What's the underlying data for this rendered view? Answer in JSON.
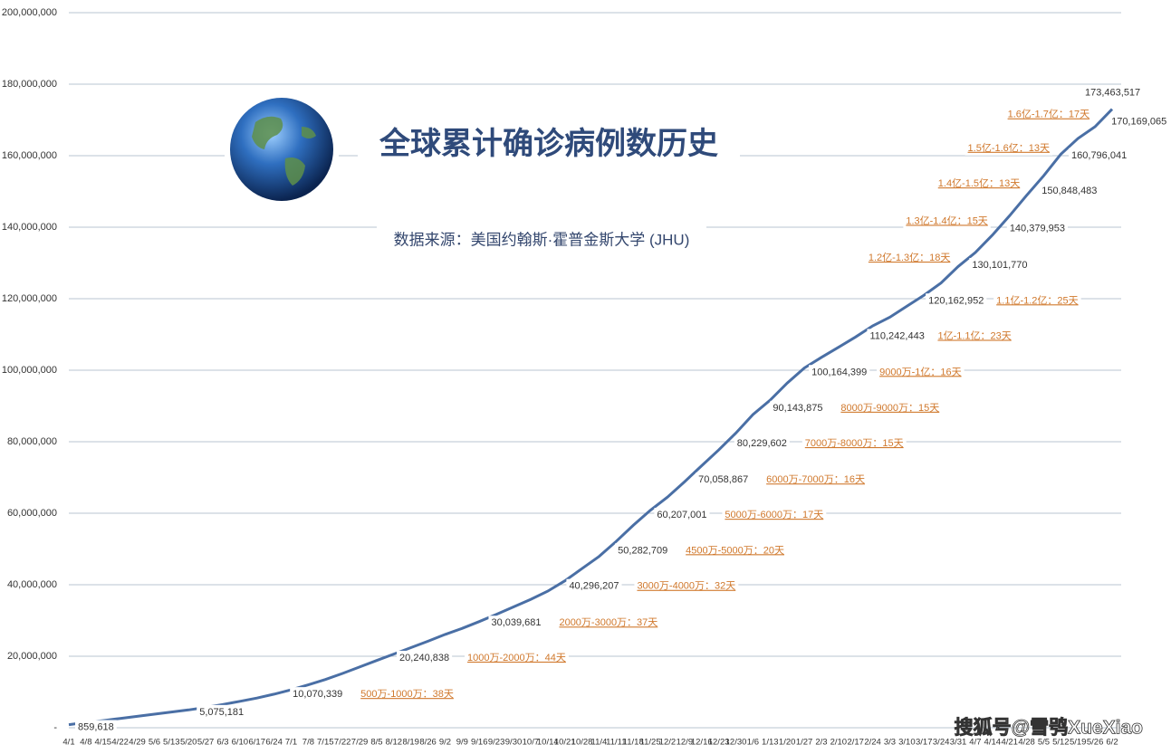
{
  "chart_data": {
    "type": "line",
    "title": "全球累计确诊病例数历史",
    "subtitle": "数据来源：美国约翰斯·霍普金斯大学 (JHU)",
    "categories": [
      "4/1",
      "4/8",
      "4/15",
      "4/22",
      "4/29",
      "5/6",
      "5/13",
      "5/20",
      "5/27",
      "6/3",
      "6/10",
      "6/17",
      "6/24",
      "7/1",
      "7/8",
      "7/15",
      "7/22",
      "7/29",
      "8/5",
      "8/12",
      "8/19",
      "8/26",
      "9/2",
      "9/9",
      "9/16",
      "9/23",
      "9/30",
      "10/7",
      "10/14",
      "10/21",
      "10/28",
      "11/4",
      "11/11",
      "11/18",
      "11/25",
      "12/2",
      "12/9",
      "12/16",
      "12/23",
      "12/30",
      "1/6",
      "1/13",
      "1/20",
      "1/27",
      "2/3",
      "2/10",
      "2/17",
      "2/24",
      "3/3",
      "3/10",
      "3/17",
      "3/24",
      "3/31",
      "4/7",
      "4/14",
      "4/21",
      "4/28",
      "5/5",
      "5/12",
      "5/19",
      "5/26",
      "6/2"
    ],
    "values": [
      859618,
      1500000,
      2000000,
      2600000,
      3200000,
      3800000,
      4400000,
      5000000,
      5700000,
      6500000,
      7400000,
      8300000,
      9400000,
      10600000,
      12000000,
      13500000,
      15200000,
      17000000,
      18800000,
      20600000,
      22400000,
      24200000,
      26100000,
      27800000,
      29700000,
      31700000,
      33800000,
      35900000,
      38200000,
      41100000,
      44500000,
      47900000,
      52100000,
      56600000,
      60800000,
      64500000,
      68800000,
      73300000,
      77700000,
      82400000,
      87600000,
      91600000,
      96400000,
      100600000,
      103600000,
      106400000,
      109300000,
      112400000,
      114800000,
      117900000,
      121000000,
      124400000,
      129000000,
      132900000,
      137800000,
      143200000,
      148900000,
      154400000,
      160400000,
      164800000,
      168100000,
      173000000
    ],
    "color": "#4a6fa5",
    "ylim": [
      0,
      200000000
    ],
    "yticks": [
      {
        "value": 0,
        "label": "-"
      },
      {
        "value": 20000000,
        "label": "20,000,000"
      },
      {
        "value": 40000000,
        "label": "40,000,000"
      },
      {
        "value": 60000000,
        "label": "60,000,000"
      },
      {
        "value": 80000000,
        "label": "80,000,000"
      },
      {
        "value": 100000000,
        "label": "100,000,000"
      },
      {
        "value": 120000000,
        "label": "120,000,000"
      },
      {
        "value": 140000000,
        "label": "140,000,000"
      },
      {
        "value": 160000000,
        "label": "160,000,000"
      },
      {
        "value": 180000000,
        "label": "180,000,000"
      },
      {
        "value": 200000000,
        "label": "200,000,000"
      }
    ],
    "grid": true,
    "milestones": {
      "values": [
        859618,
        5075181,
        10070339,
        20240838,
        30039681,
        40296207,
        50282709,
        60207001,
        70058867,
        80229602,
        90143875,
        100164399,
        110242443,
        120162952,
        130101770,
        140379953,
        150848483,
        160796041,
        170169065,
        173463517
      ],
      "value_labels": [
        "859,618",
        "5,075,181",
        "10,070,339",
        "20,240,838",
        "30,039,681",
        "40,296,207",
        "50,282,709",
        "60,207,001",
        "70,058,867",
        "80,229,602",
        "90,143,875",
        "100,164,399",
        "110,242,443",
        "120,162,952",
        "130,101,770",
        "140,379,953",
        "150,848,483",
        "160,796,041",
        "170,169,065",
        "173,463,517"
      ]
    },
    "annotations": [
      "500万-1000万：38天",
      "1000万-2000万：44天",
      "2000万-3000万：37天",
      "3000万-4000万：32天",
      "4500万-5000万：20天",
      "5000万-6000万：17天",
      "6000万-7000万：16天",
      "7000万-8000万：15天",
      "8000万-9000万：15天",
      "9000万-1亿：16天",
      "1亿-1.1亿：23天",
      "1.1亿-1.2亿：25天",
      "1.2亿-1.3亿：18天",
      "1.3亿-1.4亿：15天",
      "1.4亿-1.5亿：13天",
      "1.5亿-1.6亿：13天",
      "1.6亿-1.7亿：17天"
    ]
  },
  "watermark": "搜狐号@雪鸮XueXiao"
}
